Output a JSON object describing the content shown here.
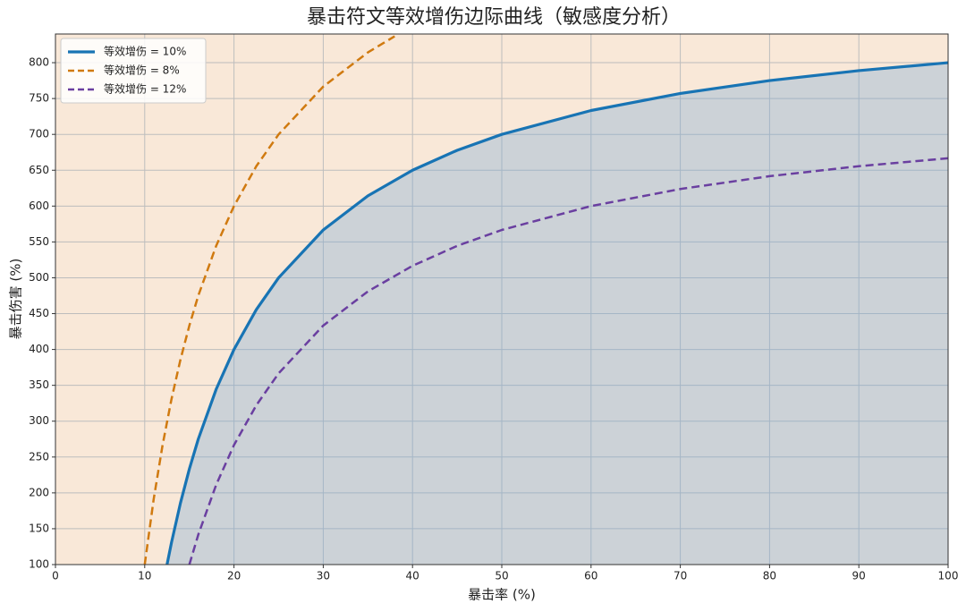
{
  "chart_data": {
    "type": "line",
    "title": "暴击符文等效增伤边际曲线（敏感度分析）",
    "x_label": "暴击率 (%)",
    "y_label": "暴击伤害 (%)",
    "xlim": [
      0,
      100
    ],
    "ylim": [
      100,
      840
    ],
    "xticks": [
      0,
      10,
      20,
      30,
      40,
      50,
      60,
      70,
      80,
      90,
      100
    ],
    "yticks": [
      100,
      150,
      200,
      250,
      300,
      350,
      400,
      450,
      500,
      550,
      600,
      650,
      700,
      750,
      800
    ],
    "grid": true,
    "legend": "upper left",
    "fill_first_series": true,
    "series": [
      {
        "name": "等效增伤 = 10%",
        "color": "#1874b4",
        "style": "solid",
        "x": [
          12.5,
          13,
          14,
          15,
          16,
          18,
          20,
          22.5,
          25,
          30,
          35,
          40,
          45,
          50,
          60,
          70,
          80,
          90,
          100
        ],
        "values": [
          100,
          130.8,
          185.7,
          233.3,
          275,
          344.4,
          400,
          455.6,
          500,
          566.7,
          614.3,
          650,
          677.8,
          700,
          733.3,
          757.1,
          775,
          788.9,
          800
        ]
      },
      {
        "name": "等效增伤 = 8%",
        "color": "#d07a10",
        "style": "dashed",
        "x": [
          10,
          11,
          12,
          13,
          14,
          15,
          16,
          18,
          20,
          22.5,
          25,
          30,
          35,
          38
        ],
        "values": [
          100,
          190.9,
          266.7,
          330.8,
          385.7,
          433.3,
          475,
          544.4,
          600,
          655.6,
          700,
          766.7,
          814.3,
          836.8
        ]
      },
      {
        "name": "等效增伤 = 12%",
        "color": "#6a3fa0",
        "style": "dashed",
        "x": [
          15,
          16,
          18,
          20,
          22.5,
          25,
          30,
          35,
          40,
          45,
          50,
          60,
          70,
          80,
          90,
          100
        ],
        "values": [
          100,
          141.7,
          211.1,
          266.7,
          322.2,
          366.7,
          433.4,
          481,
          516.7,
          544.5,
          566.7,
          600,
          623.8,
          641.7,
          655.6,
          666.7
        ]
      }
    ]
  }
}
